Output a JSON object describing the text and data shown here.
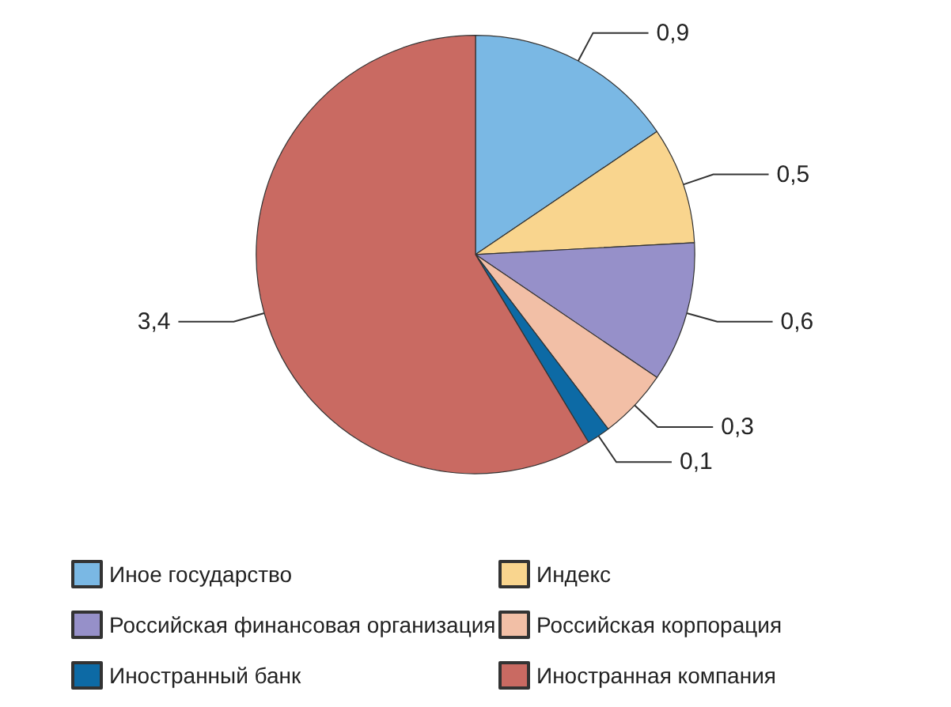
{
  "chart_data": {
    "type": "pie",
    "categories": [
      "Иное государство",
      "Индекс",
      "Российская финансовая организация",
      "Российская корпорация",
      "Иностранный банк",
      "Иностранная компания"
    ],
    "values": [
      0.9,
      0.5,
      0.6,
      0.3,
      0.1,
      3.4
    ],
    "value_labels": [
      "0,9",
      "0,5",
      "0,6",
      "0,3",
      "0,1",
      "3,4"
    ],
    "colors": [
      "#7ab8e4",
      "#f9d58e",
      "#9690c9",
      "#f2bfa6",
      "#0d6aa5",
      "#c96a62"
    ],
    "legend": "bottom"
  }
}
